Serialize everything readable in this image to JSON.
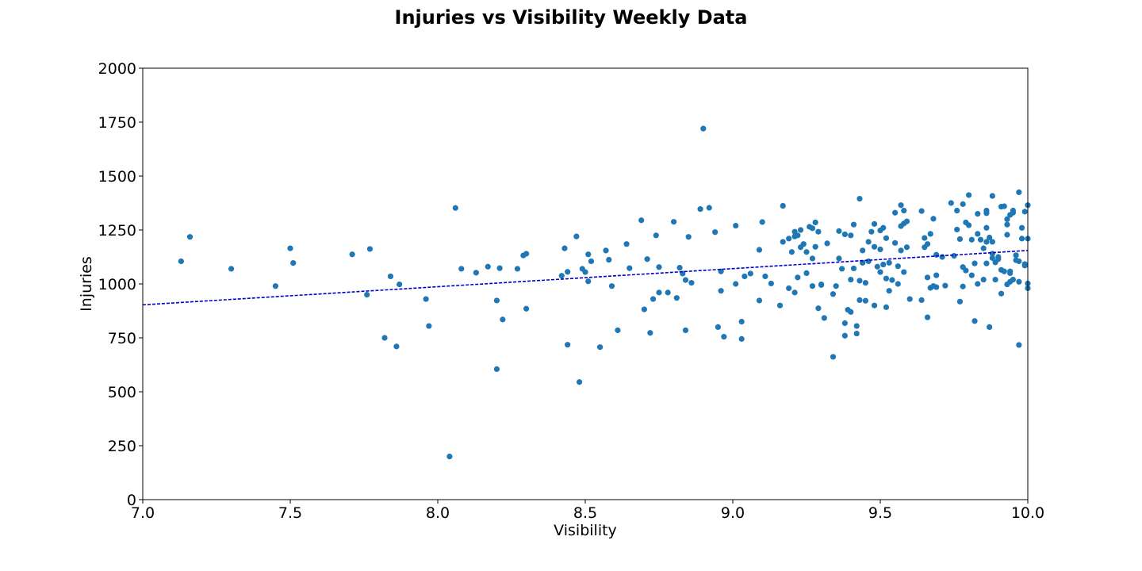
{
  "chart_data": {
    "type": "scatter",
    "title": "Injuries vs Visibility Weekly Data",
    "xlabel": "Visibility",
    "ylabel": "Injuries",
    "xlim": [
      7.0,
      10.0
    ],
    "ylim": [
      0,
      2000
    ],
    "xticks": [
      "7.0",
      "7.5",
      "8.0",
      "8.5",
      "9.0",
      "9.5",
      "10.0"
    ],
    "yticks": [
      "0",
      "250",
      "500",
      "750",
      "1000",
      "1250",
      "1500",
      "1750",
      "2000"
    ],
    "grid": false,
    "point_color": "#1f77b4",
    "trend_color": "#0000cc",
    "trendline": {
      "style": "dashed",
      "start": [
        7.0,
        903
      ],
      "end": [
        10.0,
        1155
      ]
    },
    "points": [
      [
        7.13,
        1105
      ],
      [
        7.16,
        1218
      ],
      [
        7.3,
        1070
      ],
      [
        7.45,
        990
      ],
      [
        7.5,
        1165
      ],
      [
        7.51,
        1097
      ],
      [
        7.71,
        1137
      ],
      [
        7.76,
        950
      ],
      [
        7.77,
        1162
      ],
      [
        7.82,
        750
      ],
      [
        7.84,
        1035
      ],
      [
        7.86,
        710
      ],
      [
        7.87,
        998
      ],
      [
        7.96,
        930
      ],
      [
        7.97,
        805
      ],
      [
        8.04,
        200
      ],
      [
        8.06,
        1352
      ],
      [
        8.08,
        1070
      ],
      [
        8.13,
        1052
      ],
      [
        8.17,
        1080
      ],
      [
        8.2,
        923
      ],
      [
        8.2,
        605
      ],
      [
        8.21,
        1073
      ],
      [
        8.22,
        835
      ],
      [
        8.27,
        1070
      ],
      [
        8.29,
        1132
      ],
      [
        8.3,
        1140
      ],
      [
        8.3,
        885
      ],
      [
        8.42,
        1038
      ],
      [
        8.43,
        1165
      ],
      [
        8.44,
        1056
      ],
      [
        8.44,
        718
      ],
      [
        8.47,
        1220
      ],
      [
        8.48,
        545
      ],
      [
        8.49,
        1070
      ],
      [
        8.5,
        1055
      ],
      [
        8.51,
        1137
      ],
      [
        8.51,
        1012
      ],
      [
        8.52,
        1105
      ],
      [
        8.55,
        707
      ],
      [
        8.57,
        1155
      ],
      [
        8.58,
        1112
      ],
      [
        8.59,
        990
      ],
      [
        8.61,
        785
      ],
      [
        8.64,
        1185
      ],
      [
        8.65,
        1073
      ],
      [
        8.69,
        1295
      ],
      [
        8.7,
        882
      ],
      [
        8.71,
        1115
      ],
      [
        8.72,
        773
      ],
      [
        8.73,
        930
      ],
      [
        8.74,
        1225
      ],
      [
        8.75,
        1078
      ],
      [
        8.75,
        960
      ],
      [
        8.78,
        960
      ],
      [
        8.8,
        1288
      ],
      [
        8.81,
        935
      ],
      [
        8.82,
        1075
      ],
      [
        8.83,
        1048
      ],
      [
        8.84,
        1018
      ],
      [
        8.84,
        785
      ],
      [
        8.85,
        1218
      ],
      [
        8.86,
        1005
      ],
      [
        8.89,
        1347
      ],
      [
        8.9,
        1720
      ],
      [
        8.92,
        1353
      ],
      [
        8.94,
        1240
      ],
      [
        8.95,
        800
      ],
      [
        8.96,
        1058
      ],
      [
        8.96,
        968
      ],
      [
        8.97,
        755
      ],
      [
        9.01,
        1000
      ],
      [
        9.01,
        1270
      ],
      [
        9.03,
        825
      ],
      [
        9.03,
        745
      ],
      [
        9.04,
        1035
      ],
      [
        9.06,
        1048
      ],
      [
        9.09,
        1158
      ],
      [
        9.09,
        923
      ],
      [
        9.1,
        1287
      ],
      [
        9.11,
        1035
      ],
      [
        9.13,
        1002
      ],
      [
        9.16,
        900
      ],
      [
        9.17,
        1362
      ],
      [
        9.17,
        1195
      ],
      [
        9.19,
        1210
      ],
      [
        9.19,
        980
      ],
      [
        9.2,
        1148
      ],
      [
        9.21,
        1242
      ],
      [
        9.21,
        1220
      ],
      [
        9.21,
        960
      ],
      [
        9.22,
        1225
      ],
      [
        9.22,
        1030
      ],
      [
        9.23,
        1170
      ],
      [
        9.23,
        1250
      ],
      [
        9.24,
        1185
      ],
      [
        9.25,
        1050
      ],
      [
        9.25,
        1148
      ],
      [
        9.26,
        1265
      ],
      [
        9.27,
        1258
      ],
      [
        9.27,
        1118
      ],
      [
        9.27,
        990
      ],
      [
        9.28,
        1172
      ],
      [
        9.28,
        1285
      ],
      [
        9.29,
        887
      ],
      [
        9.29,
        1242
      ],
      [
        9.3,
        998
      ],
      [
        9.3,
        995
      ],
      [
        9.31,
        842
      ],
      [
        9.32,
        1188
      ],
      [
        9.34,
        662
      ],
      [
        9.34,
        953
      ],
      [
        9.35,
        990
      ],
      [
        9.36,
        1118
      ],
      [
        9.36,
        1245
      ],
      [
        9.37,
        1070
      ],
      [
        9.38,
        760
      ],
      [
        9.38,
        818
      ],
      [
        9.38,
        1230
      ],
      [
        9.39,
        880
      ],
      [
        9.4,
        870
      ],
      [
        9.4,
        1225
      ],
      [
        9.4,
        1020
      ],
      [
        9.41,
        1072
      ],
      [
        9.41,
        1275
      ],
      [
        9.42,
        805
      ],
      [
        9.42,
        770
      ],
      [
        9.43,
        925
      ],
      [
        9.43,
        1395
      ],
      [
        9.43,
        1015
      ],
      [
        9.44,
        1098
      ],
      [
        9.44,
        1155
      ],
      [
        9.45,
        1005
      ],
      [
        9.45,
        922
      ],
      [
        9.46,
        1195
      ],
      [
        9.46,
        1105
      ],
      [
        9.47,
        1242
      ],
      [
        9.48,
        1278
      ],
      [
        9.48,
        1172
      ],
      [
        9.48,
        900
      ],
      [
        9.49,
        1080
      ],
      [
        9.5,
        1248
      ],
      [
        9.5,
        1160
      ],
      [
        9.5,
        1055
      ],
      [
        9.51,
        1090
      ],
      [
        9.51,
        1260
      ],
      [
        9.52,
        1025
      ],
      [
        9.52,
        1212
      ],
      [
        9.52,
        892
      ],
      [
        9.53,
        968
      ],
      [
        9.53,
        1098
      ],
      [
        9.54,
        1018
      ],
      [
        9.55,
        1190
      ],
      [
        9.55,
        1330
      ],
      [
        9.56,
        1000
      ],
      [
        9.56,
        1082
      ],
      [
        9.57,
        1268
      ],
      [
        9.57,
        1365
      ],
      [
        9.57,
        1155
      ],
      [
        9.58,
        1055
      ],
      [
        9.58,
        1280
      ],
      [
        9.58,
        1340
      ],
      [
        9.59,
        1170
      ],
      [
        9.59,
        1290
      ],
      [
        9.6,
        930
      ],
      [
        9.64,
        1338
      ],
      [
        9.64,
        925
      ],
      [
        9.65,
        1213
      ],
      [
        9.65,
        1170
      ],
      [
        9.66,
        1030
      ],
      [
        9.66,
        1185
      ],
      [
        9.66,
        845
      ],
      [
        9.67,
        982
      ],
      [
        9.67,
        1232
      ],
      [
        9.68,
        990
      ],
      [
        9.68,
        1302
      ],
      [
        9.69,
        1040
      ],
      [
        9.69,
        1135
      ],
      [
        9.69,
        985
      ],
      [
        9.71,
        1125
      ],
      [
        9.72,
        992
      ],
      [
        9.74,
        1375
      ],
      [
        9.75,
        1130
      ],
      [
        9.76,
        1252
      ],
      [
        9.76,
        1340
      ],
      [
        9.77,
        918
      ],
      [
        9.77,
        1208
      ],
      [
        9.78,
        988
      ],
      [
        9.78,
        1078
      ],
      [
        9.78,
        1370
      ],
      [
        9.79,
        1285
      ],
      [
        9.79,
        1062
      ],
      [
        9.8,
        1272
      ],
      [
        9.8,
        1412
      ],
      [
        9.81,
        1040
      ],
      [
        9.81,
        1205
      ],
      [
        9.82,
        1095
      ],
      [
        9.82,
        828
      ],
      [
        9.83,
        1232
      ],
      [
        9.83,
        1325
      ],
      [
        9.83,
        1000
      ],
      [
        9.84,
        1205
      ],
      [
        9.85,
        1165
      ],
      [
        9.85,
        1020
      ],
      [
        9.86,
        1340
      ],
      [
        9.86,
        1195
      ],
      [
        9.86,
        1328
      ],
      [
        9.86,
        1260
      ],
      [
        9.86,
        1095
      ],
      [
        9.87,
        1215
      ],
      [
        9.87,
        800
      ],
      [
        9.88,
        1120
      ],
      [
        9.88,
        1195
      ],
      [
        9.88,
        1140
      ],
      [
        9.88,
        1408
      ],
      [
        9.89,
        1020
      ],
      [
        9.89,
        1100
      ],
      [
        9.9,
        1115
      ],
      [
        9.9,
        1125
      ],
      [
        9.91,
        1065
      ],
      [
        9.91,
        955
      ],
      [
        9.91,
        1358
      ],
      [
        9.92,
        1360
      ],
      [
        9.92,
        1058
      ],
      [
        9.93,
        1275
      ],
      [
        9.93,
        1300
      ],
      [
        9.93,
        1228
      ],
      [
        9.93,
        998
      ],
      [
        9.94,
        1058
      ],
      [
        9.94,
        1050
      ],
      [
        9.94,
        1010
      ],
      [
        9.94,
        1320
      ],
      [
        9.95,
        1340
      ],
      [
        9.95,
        1330
      ],
      [
        9.95,
        1020
      ],
      [
        9.96,
        1110
      ],
      [
        9.96,
        1133
      ],
      [
        9.97,
        1105
      ],
      [
        9.97,
        1425
      ],
      [
        9.97,
        1010
      ],
      [
        9.97,
        717
      ],
      [
        9.98,
        1260
      ],
      [
        9.98,
        1210
      ],
      [
        9.99,
        1085
      ],
      [
        9.99,
        1335
      ],
      [
        9.99,
        1092
      ],
      [
        10.0,
        1210
      ],
      [
        10.0,
        1365
      ],
      [
        10.0,
        1002
      ],
      [
        10.0,
        980
      ]
    ]
  }
}
